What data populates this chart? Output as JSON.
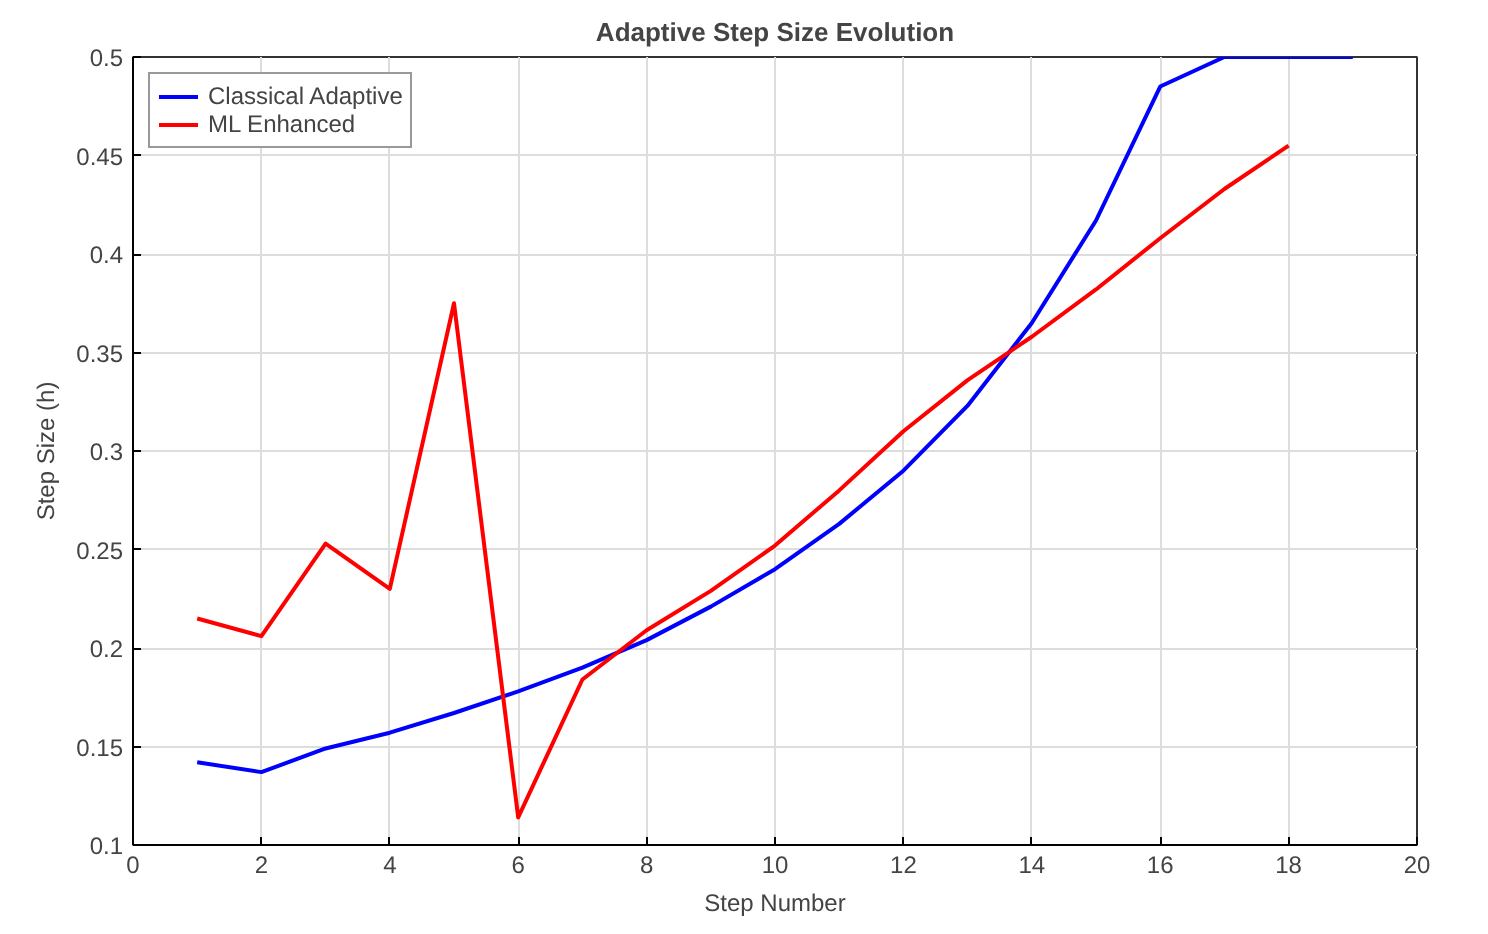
{
  "chart_data": {
    "type": "line",
    "title": "Adaptive Step Size Evolution",
    "xlabel": "Step Number",
    "ylabel": "Step Size (h)",
    "x": [
      1,
      2,
      3,
      4,
      5,
      6,
      7,
      8,
      9,
      10,
      11,
      12,
      13,
      14,
      15,
      16,
      17,
      18,
      19
    ],
    "series": [
      {
        "name": "Classical Adaptive",
        "color": "#0000ff",
        "values": [
          0.142,
          0.137,
          0.149,
          0.157,
          0.167,
          0.178,
          0.19,
          0.204,
          0.221,
          0.24,
          0.263,
          0.29,
          0.323,
          0.365,
          0.417,
          0.485,
          0.5,
          0.5,
          0.5
        ]
      },
      {
        "name": "ML Enhanced",
        "color": "#ff0000",
        "values": [
          0.215,
          0.206,
          0.253,
          0.23,
          0.375,
          0.114,
          0.184,
          0.209,
          0.229,
          0.252,
          0.28,
          0.31,
          0.336,
          0.358,
          0.382,
          0.408,
          0.433,
          0.455,
          null
        ]
      }
    ],
    "xlim": [
      0,
      20
    ],
    "ylim": [
      0.1,
      0.5
    ],
    "xticks": [
      0,
      2,
      4,
      6,
      8,
      10,
      12,
      14,
      16,
      18,
      20
    ],
    "yticks": [
      0.1,
      0.15,
      0.2,
      0.25,
      0.3,
      0.35,
      0.4,
      0.45,
      0.5
    ],
    "grid": true,
    "legend": "top left",
    "marker": "none",
    "line_style": "solid"
  }
}
